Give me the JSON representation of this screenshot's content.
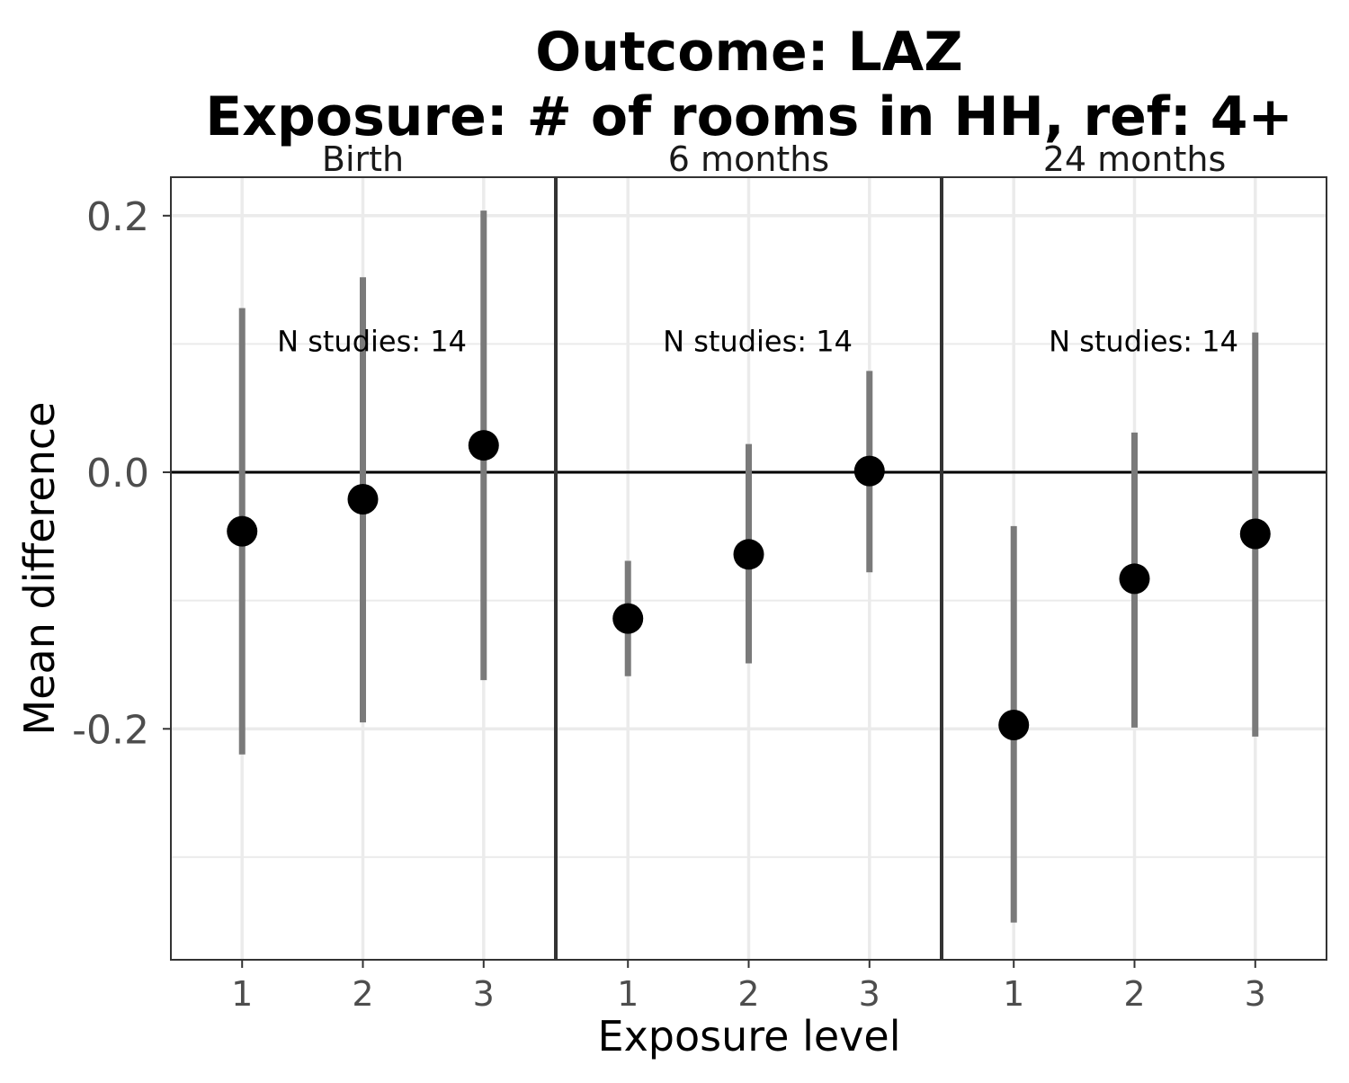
{
  "chart_data": {
    "type": "scatter",
    "title_line1": "Outcome: LAZ",
    "title_line2": "Exposure: # of rooms in HH, ref: 4+",
    "xlabel": "Exposure level",
    "ylabel": "Mean difference",
    "ylim": [
      -0.38,
      0.23
    ],
    "yticks": [
      0.2,
      0.0,
      -0.2
    ],
    "ytick_labels": [
      "0.2",
      "0.0",
      "-0.2"
    ],
    "yminor": [
      0.1,
      -0.1,
      -0.3
    ],
    "x_categories": [
      "1",
      "2",
      "3"
    ],
    "reference_line": 0.0,
    "colors": {
      "point": "#000000",
      "ci": "#7a7a7a",
      "grid": "#ebebeb",
      "panel_border": "#333333"
    },
    "panels": [
      {
        "label": "Birth",
        "annotation": "N studies: 14",
        "annotation_y": 0.102,
        "points": [
          {
            "x": "1",
            "estimate": -0.046,
            "lower": -0.22,
            "upper": 0.128
          },
          {
            "x": "2",
            "estimate": -0.021,
            "lower": -0.195,
            "upper": 0.152
          },
          {
            "x": "3",
            "estimate": 0.021,
            "lower": -0.162,
            "upper": 0.204
          }
        ]
      },
      {
        "label": "6 months",
        "annotation": "N studies: 14",
        "annotation_y": 0.102,
        "points": [
          {
            "x": "1",
            "estimate": -0.114,
            "lower": -0.159,
            "upper": -0.069
          },
          {
            "x": "2",
            "estimate": -0.064,
            "lower": -0.149,
            "upper": 0.022
          },
          {
            "x": "3",
            "estimate": 0.001,
            "lower": -0.078,
            "upper": 0.079
          }
        ]
      },
      {
        "label": "24 months",
        "annotation": "N studies: 14",
        "annotation_y": 0.102,
        "points": [
          {
            "x": "1",
            "estimate": -0.197,
            "lower": -0.351,
            "upper": -0.042
          },
          {
            "x": "2",
            "estimate": -0.083,
            "lower": -0.199,
            "upper": 0.031
          },
          {
            "x": "3",
            "estimate": -0.048,
            "lower": -0.206,
            "upper": 0.109
          }
        ]
      }
    ]
  }
}
